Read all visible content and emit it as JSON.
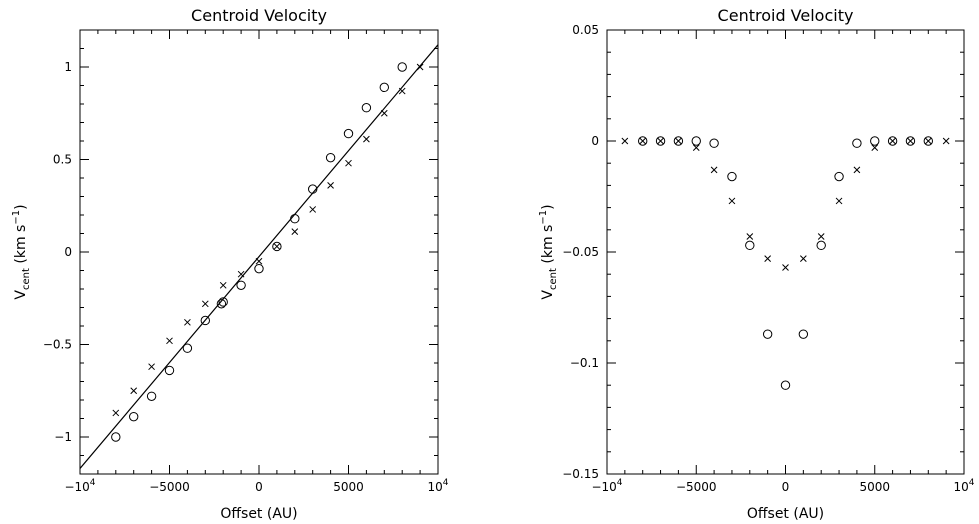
{
  "chart_data": [
    {
      "type": "scatter",
      "title": "Centroid Velocity",
      "xlabel": {
        "main": "Offset (AU)"
      },
      "ylabel": {
        "base": "V",
        "sub": "cent",
        "unit": "(km s",
        "unit_sup": "−1",
        "unit_close": ")"
      },
      "xlim": [
        -10000,
        10000
      ],
      "ylim": [
        -1.2,
        1.2
      ],
      "xticks": [
        {
          "v": -10000,
          "base": "−10",
          "sup": "4"
        },
        {
          "v": -5000,
          "label": "−5000"
        },
        {
          "v": 0,
          "label": "0"
        },
        {
          "v": 5000,
          "label": "5000"
        },
        {
          "v": 10000,
          "base": "10",
          "sup": "4"
        }
      ],
      "yticks": [
        {
          "v": -1,
          "label": "−1"
        },
        {
          "v": -0.5,
          "label": "−0.5"
        },
        {
          "v": 0,
          "label": "0"
        },
        {
          "v": 0.5,
          "label": "0.5"
        },
        {
          "v": 1,
          "label": "1"
        }
      ],
      "series": [
        {
          "marker": "circle",
          "points": [
            [
              -8000,
              -1.0
            ],
            [
              -7000,
              -0.89
            ],
            [
              -6000,
              -0.78
            ],
            [
              -5000,
              -0.64
            ],
            [
              -4000,
              -0.52
            ],
            [
              -3000,
              -0.37
            ],
            [
              -2000,
              -0.27
            ],
            [
              -2100,
              -0.28
            ],
            [
              -1000,
              -0.18
            ],
            [
              0,
              -0.09
            ],
            [
              1000,
              0.03
            ],
            [
              2000,
              0.18
            ],
            [
              3000,
              0.34
            ],
            [
              4000,
              0.51
            ],
            [
              5000,
              0.64
            ],
            [
              6000,
              0.78
            ],
            [
              7000,
              0.89
            ],
            [
              8000,
              1.0
            ]
          ]
        },
        {
          "marker": "cross",
          "points": [
            [
              -8000,
              -0.87
            ],
            [
              -7000,
              -0.75
            ],
            [
              -6000,
              -0.62
            ],
            [
              -5000,
              -0.48
            ],
            [
              -4000,
              -0.38
            ],
            [
              -3000,
              -0.28
            ],
            [
              -2000,
              -0.18
            ],
            [
              -1000,
              -0.12
            ],
            [
              0,
              -0.05
            ],
            [
              1000,
              0.03
            ],
            [
              2000,
              0.11
            ],
            [
              3000,
              0.23
            ],
            [
              4000,
              0.36
            ],
            [
              5000,
              0.48
            ],
            [
              6000,
              0.61
            ],
            [
              7000,
              0.75
            ],
            [
              8000,
              0.87
            ],
            [
              9000,
              1.0
            ]
          ]
        },
        {
          "marker": "line",
          "points": [
            [
              -10000,
              -1.17
            ],
            [
              10000,
              1.12
            ]
          ]
        }
      ]
    },
    {
      "type": "scatter",
      "title": "Centroid Velocity",
      "xlabel": {
        "main": "Offset (AU)"
      },
      "ylabel": {
        "base": "V",
        "sub": "cent",
        "unit": "(km s",
        "unit_sup": "−1",
        "unit_close": ")"
      },
      "xlim": [
        -10000,
        10000
      ],
      "ylim": [
        -0.15,
        0.05
      ],
      "xticks": [
        {
          "v": -10000,
          "base": "−10",
          "sup": "4"
        },
        {
          "v": -5000,
          "label": "−5000"
        },
        {
          "v": 0,
          "label": "0"
        },
        {
          "v": 5000,
          "label": "5000"
        },
        {
          "v": 10000,
          "base": "10",
          "sup": "4"
        }
      ],
      "yticks": [
        {
          "v": -0.15,
          "label": "−0.15"
        },
        {
          "v": -0.1,
          "label": "−0.1"
        },
        {
          "v": -0.05,
          "label": "−0.05"
        },
        {
          "v": 0,
          "label": "0"
        },
        {
          "v": 0.05,
          "label": "0.05"
        }
      ],
      "series": [
        {
          "marker": "circle",
          "points": [
            [
              -8000,
              0.0
            ],
            [
              -7000,
              0.0
            ],
            [
              -6000,
              0.0
            ],
            [
              -5000,
              0.0
            ],
            [
              -4000,
              -0.001
            ],
            [
              -3000,
              -0.016
            ],
            [
              -2000,
              -0.047
            ],
            [
              -1000,
              -0.087
            ],
            [
              0,
              -0.11
            ],
            [
              1000,
              -0.087
            ],
            [
              2000,
              -0.047
            ],
            [
              3000,
              -0.016
            ],
            [
              4000,
              -0.001
            ],
            [
              5000,
              0.0
            ],
            [
              6000,
              0.0
            ],
            [
              7000,
              0.0
            ],
            [
              8000,
              0.0
            ]
          ]
        },
        {
          "marker": "cross",
          "points": [
            [
              -9000,
              0.0
            ],
            [
              -8000,
              0.0
            ],
            [
              -7000,
              0.0
            ],
            [
              -6000,
              0.0
            ],
            [
              -5000,
              -0.003
            ],
            [
              -4000,
              -0.013
            ],
            [
              -3000,
              -0.027
            ],
            [
              -2000,
              -0.043
            ],
            [
              -1000,
              -0.053
            ],
            [
              0,
              -0.057
            ],
            [
              1000,
              -0.053
            ],
            [
              2000,
              -0.043
            ],
            [
              3000,
              -0.027
            ],
            [
              4000,
              -0.013
            ],
            [
              5000,
              -0.003
            ],
            [
              6000,
              0.0
            ],
            [
              7000,
              0.0
            ],
            [
              8000,
              0.0
            ],
            [
              9000,
              0.0
            ]
          ]
        }
      ]
    }
  ]
}
